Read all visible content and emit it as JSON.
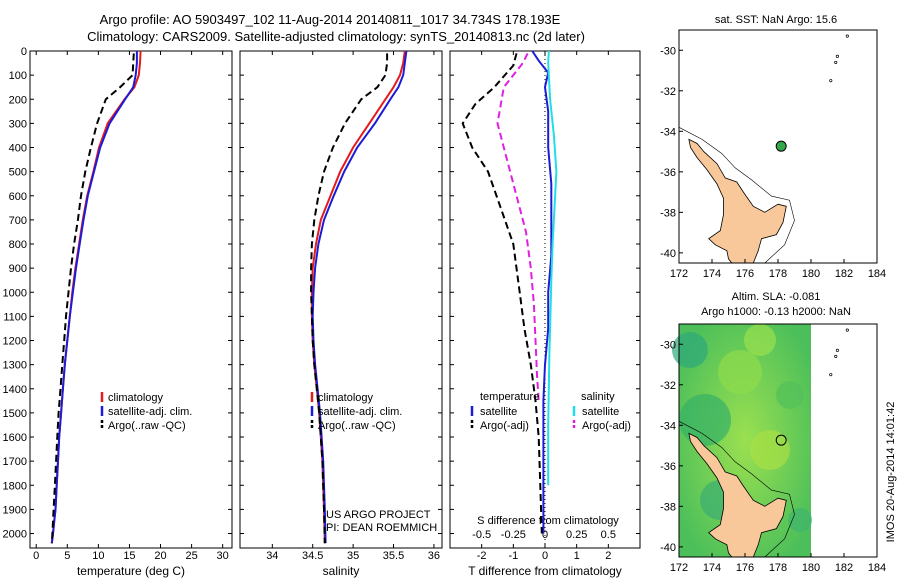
{
  "title": {
    "line1": "Argo profile: AO 5903497_102 11-Aug-2014 20140811_1017 34.734S 178.193E",
    "line2": "Climatology: CARS2009. Satellite-adjusted climatology: synTS_20140813.nc (2d later)"
  },
  "annotation": {
    "project": "US ARGO PROJECT",
    "pi": "PI: DEAN ROEMMICH"
  },
  "stamp": "IMOS 20-Aug-2014 14:01:42",
  "colors": {
    "climatology": "#e41a1c",
    "satellite": "#1c1cd8",
    "argo": "#000000",
    "satellite_s": "#22dde8",
    "argo_s": "#e020e0",
    "land": "#f8c89a"
  },
  "map_top": {
    "title": "sat. SST: NaN Argo: 15.6",
    "xticks": [
      "172",
      "174",
      "176",
      "178",
      "180",
      "182",
      "184"
    ],
    "yticks": [
      "-30",
      "-32",
      "-34",
      "-36",
      "-38",
      "-40"
    ],
    "xlim": [
      172,
      184
    ],
    "ylim": [
      -40.5,
      -29
    ],
    "float": {
      "lon": 178.193,
      "lat": -34.734
    }
  },
  "map_bottom": {
    "title1": "Altim. SLA: -0.081",
    "title2": "Argo h1000: -0.13 h2000: NaN",
    "xticks": [
      "172",
      "174",
      "176",
      "178",
      "180",
      "182",
      "184"
    ],
    "yticks": [
      "-30",
      "-32",
      "-34",
      "-36",
      "-38",
      "-40"
    ],
    "xlim": [
      172,
      184
    ],
    "ylim": [
      -40.5,
      -29
    ],
    "float": {
      "lon": 178.193,
      "lat": -34.734
    }
  },
  "chart_data": [
    {
      "type": "line",
      "xlabel": "temperature (deg C)",
      "ylabel": "",
      "xlim": [
        -1,
        31.5
      ],
      "ylim": [
        2060,
        0
      ],
      "xticks": [
        "0",
        "5",
        "10",
        "15",
        "20",
        "25",
        "30"
      ],
      "yticks": [
        "0",
        "100",
        "200",
        "300",
        "400",
        "500",
        "600",
        "700",
        "800",
        "900",
        "1000",
        "1100",
        "1200",
        "1300",
        "1400",
        "1500",
        "1600",
        "1700",
        "1800",
        "1900",
        "2000"
      ],
      "legend": [
        "climatology",
        "satellite-adj. clim.",
        "Argo(..raw -QC)"
      ],
      "series": [
        {
          "name": "climatology",
          "x": [
            16.8,
            16.7,
            16.5,
            15.8,
            14.2,
            11.5,
            10.1,
            9.2,
            8.2,
            7.5,
            6.9,
            6.3,
            5.8,
            5.4,
            5.0,
            4.6,
            4.3,
            4.0,
            3.7,
            3.5,
            3.3,
            3.1,
            2.9,
            2.7,
            2.5
          ],
          "y": [
            0,
            50,
            100,
            150,
            200,
            300,
            400,
            500,
            600,
            700,
            800,
            900,
            1000,
            1100,
            1200,
            1300,
            1400,
            1500,
            1600,
            1700,
            1800,
            1900,
            1950,
            2000,
            2040
          ]
        },
        {
          "name": "satellite-adj. clim.",
          "x": [
            16.2,
            16.2,
            16.0,
            15.6,
            14.3,
            11.8,
            10.3,
            9.3,
            8.3,
            7.6,
            7.0,
            6.4,
            5.9,
            5.4,
            5.0,
            4.6,
            4.3,
            4.0,
            3.7,
            3.5,
            3.3,
            3.1,
            2.9,
            2.7,
            2.5
          ],
          "y": [
            0,
            50,
            100,
            150,
            200,
            300,
            400,
            500,
            600,
            700,
            800,
            900,
            1000,
            1100,
            1200,
            1300,
            1400,
            1500,
            1600,
            1700,
            1800,
            1900,
            1950,
            2000,
            2040
          ]
        },
        {
          "name": "Argo(..raw -QC)",
          "x": [
            15.7,
            15.6,
            15.5,
            13.5,
            11.2,
            9.8,
            8.8,
            7.9,
            7.2,
            6.7,
            6.1,
            5.6,
            5.2,
            4.8,
            4.5,
            4.2,
            3.9,
            3.6,
            3.4,
            3.2,
            3.0,
            2.8,
            2.6,
            2.5
          ],
          "y": [
            10,
            50,
            100,
            150,
            200,
            300,
            400,
            500,
            600,
            700,
            800,
            900,
            1000,
            1100,
            1200,
            1300,
            1400,
            1500,
            1600,
            1700,
            1800,
            1900,
            2000,
            2040
          ]
        }
      ]
    },
    {
      "type": "line",
      "xlabel": "salinity",
      "ylabel": "",
      "xlim": [
        33.6,
        36.1
      ],
      "ylim": [
        2060,
        0
      ],
      "xticks": [
        "34",
        "34.5",
        "35",
        "35.5",
        "36"
      ],
      "yticks": [],
      "legend": [
        "climatology",
        "satellite-adj. clim.",
        "Argo(..raw -QC)"
      ],
      "series": [
        {
          "name": "climatology",
          "x": [
            35.64,
            35.62,
            35.58,
            35.5,
            35.4,
            35.2,
            35.0,
            34.84,
            34.72,
            34.6,
            34.54,
            34.5,
            34.49,
            34.49,
            34.5,
            34.52,
            34.55,
            34.58,
            34.6,
            34.62,
            34.63,
            34.64,
            34.65
          ],
          "y": [
            0,
            50,
            100,
            150,
            200,
            300,
            400,
            500,
            600,
            700,
            800,
            900,
            1000,
            1100,
            1200,
            1300,
            1400,
            1500,
            1600,
            1700,
            1800,
            1900,
            2040
          ]
        },
        {
          "name": "satellite-adj. clim.",
          "x": [
            35.66,
            35.64,
            35.62,
            35.56,
            35.46,
            35.27,
            35.05,
            34.89,
            34.76,
            34.64,
            34.57,
            34.53,
            34.51,
            34.5,
            34.51,
            34.53,
            34.56,
            34.59,
            34.61,
            34.63,
            34.64,
            34.65,
            34.66
          ],
          "y": [
            0,
            50,
            100,
            150,
            200,
            300,
            400,
            500,
            600,
            700,
            800,
            900,
            1000,
            1100,
            1200,
            1300,
            1400,
            1500,
            1600,
            1700,
            1800,
            1900,
            2040
          ]
        },
        {
          "name": "Argo(..raw -QC)",
          "x": [
            35.42,
            35.42,
            35.4,
            35.3,
            35.1,
            34.9,
            34.75,
            34.64,
            34.57,
            34.52,
            34.49,
            34.48,
            34.48,
            34.49,
            34.5,
            34.52,
            34.55,
            34.58,
            34.6,
            34.62,
            34.63,
            34.64,
            34.65
          ],
          "y": [
            10,
            50,
            100,
            150,
            200,
            300,
            400,
            500,
            600,
            700,
            800,
            900,
            1000,
            1100,
            1200,
            1300,
            1400,
            1500,
            1600,
            1700,
            1800,
            1900,
            2040
          ]
        }
      ]
    },
    {
      "type": "line",
      "xlabel": "T difference from climatology",
      "xlabel2": "S difference from climatology",
      "ylabel": "",
      "xlim": [
        -3.0,
        3.0
      ],
      "ylim": [
        2060,
        0
      ],
      "xticks": [
        "-2",
        "-1",
        "0",
        "1",
        "2"
      ],
      "xticks2": [
        "-0.5",
        "-0.25",
        "0",
        "0.25",
        "0.5"
      ],
      "yticks": [],
      "legend_headers": [
        "temperature",
        "salinity"
      ],
      "legend": [
        "satellite",
        "Argo(-adj)",
        "satellite",
        "Argo(-adj)"
      ],
      "series": [
        {
          "name": "satellite",
          "group": "temperature",
          "x": [
            -0.4,
            -0.2,
            0.1,
            0.0,
            0.1,
            0.1,
            0.2,
            0.2,
            0.2,
            0.1,
            0.1,
            0.0,
            -0.05,
            -0.05,
            -0.05,
            -0.05
          ],
          "y": [
            0,
            40,
            90,
            150,
            250,
            400,
            550,
            700,
            850,
            1000,
            1150,
            1300,
            1450,
            1600,
            1800,
            2000
          ]
        },
        {
          "name": "Argo(-adj)",
          "group": "temperature",
          "x": [
            -0.9,
            -1.0,
            -1.6,
            -2.2,
            -2.6,
            -2.3,
            -1.8,
            -1.4,
            -1.0,
            -0.8,
            -0.65,
            -0.45,
            -0.3,
            -0.2,
            -0.15,
            -0.1
          ],
          "y": [
            10,
            60,
            150,
            220,
            300,
            400,
            500,
            650,
            800,
            1000,
            1150,
            1300,
            1450,
            1600,
            1800,
            2000
          ]
        },
        {
          "name": "satellite",
          "group": "salinity",
          "x": [
            0.12,
            0.1,
            0.12,
            0.16,
            0.28,
            0.36,
            0.3,
            0.24,
            0.2,
            0.17,
            0.14,
            0.12,
            0.1,
            0.1,
            0.1
          ],
          "y": [
            0,
            50,
            100,
            200,
            350,
            500,
            650,
            800,
            950,
            1100,
            1250,
            1400,
            1550,
            1700,
            1800
          ]
        },
        {
          "name": "Argo(-adj)",
          "group": "salinity",
          "x": [
            -0.55,
            -0.7,
            -1.3,
            -1.5,
            -1.2,
            -0.9,
            -0.6,
            -0.45,
            -0.35,
            -0.3,
            -0.25,
            -0.2
          ],
          "y": [
            10,
            50,
            150,
            300,
            450,
            600,
            750,
            900,
            1050,
            1200,
            1350,
            1450
          ]
        }
      ]
    }
  ]
}
